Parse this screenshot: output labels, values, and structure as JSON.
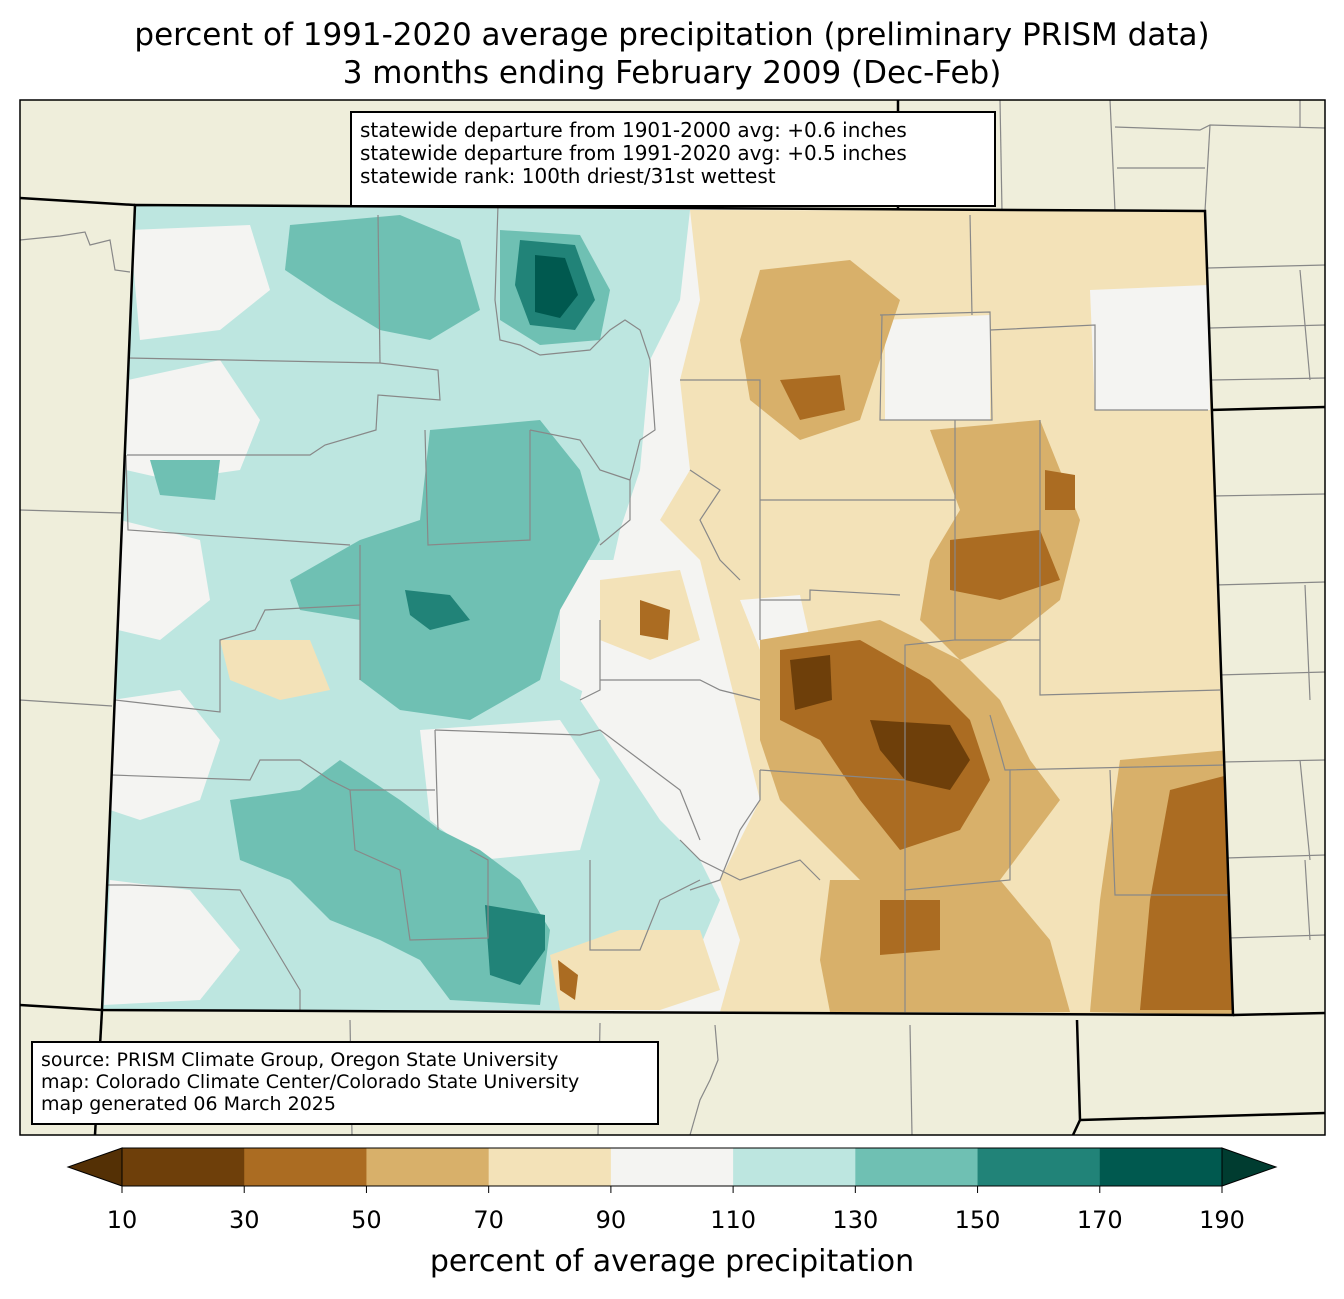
{
  "title": {
    "line1": "percent of 1991-2020 average precipitation (preliminary PRISM data)",
    "line2": "3 months ending February 2009 (Dec-Feb)"
  },
  "stats": {
    "line1": "statewide departure from 1901-2000 avg: +0.6 inches",
    "line2": "statewide departure from 1991-2020 avg: +0.5 inches",
    "line3": "statewide rank: 100th driest/31st wettest"
  },
  "source": {
    "line1": "source: PRISM Climate Group, Oregon State University",
    "line2": "map: Colorado Climate Center/Colorado State University",
    "line3": "map generated 06 March 2025"
  },
  "colorbar": {
    "label": "percent of average precipitation",
    "ticks": [
      "10",
      "30",
      "50",
      "70",
      "90",
      "110",
      "130",
      "150",
      "170",
      "190"
    ],
    "under_color": "#543005",
    "over_color": "#003c30",
    "colors": [
      "#6e3f0a",
      "#ab6c22",
      "#d8b06a",
      "#f3e2b8",
      "#f4f4f2",
      "#bde6e0",
      "#6fc0b3",
      "#218378",
      "#00594f"
    ]
  },
  "map": {
    "background_color": "#efeedb",
    "state": "Colorado"
  }
}
